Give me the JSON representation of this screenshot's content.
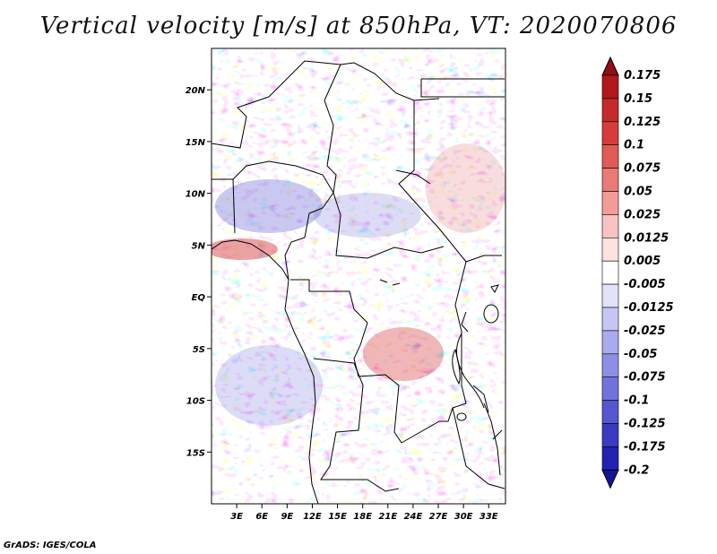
{
  "title": "Vertical velocity [m/s] at 850hPa, VT: 2020070806",
  "footer": "GrADS: IGES/COLA",
  "map": {
    "lat_labels": [
      "20N",
      "15N",
      "10N",
      "5N",
      "EQ",
      "5S",
      "10S",
      "15S"
    ],
    "lat_values": [
      20,
      15,
      10,
      5,
      0,
      -5,
      -10,
      -15
    ],
    "lon_labels": [
      "3E",
      "6E",
      "9E",
      "12E",
      "15E",
      "18E",
      "21E",
      "24E",
      "27E",
      "30E",
      "33E"
    ],
    "lon_values": [
      3,
      6,
      9,
      12,
      15,
      18,
      21,
      24,
      27,
      30,
      33
    ],
    "lon_range": [
      0,
      35
    ],
    "lat_range": [
      -20,
      24
    ]
  },
  "colorbar": {
    "labels": [
      "0.175",
      "0.15",
      "0.125",
      "0.1",
      "0.075",
      "0.05",
      "0.025",
      "0.0125",
      "0.005",
      "-0.005",
      "-0.0125",
      "-0.025",
      "-0.05",
      "-0.075",
      "-0.1",
      "-0.125",
      "-0.175",
      "-0.2"
    ],
    "colors": [
      "#8f0f14",
      "#b0181e",
      "#c62a2a",
      "#d63c3c",
      "#e05a58",
      "#e87a78",
      "#f29c9a",
      "#f8c2c0",
      "#fde2e0",
      "#ffffff",
      "#e2e2fb",
      "#c6c6f4",
      "#aaaaee",
      "#8e8ee6",
      "#7272dc",
      "#5656d0",
      "#3a3ac2",
      "#2222b0",
      "#141498"
    ]
  }
}
